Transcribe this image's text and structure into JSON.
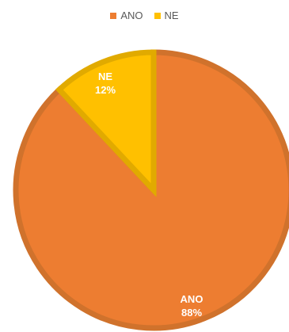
{
  "chart_data": {
    "type": "pie",
    "categories": [
      "ANO",
      "NE"
    ],
    "values": [
      88,
      12
    ],
    "colors": {
      "ANO": "#ED7D31",
      "NE": "#FFC000",
      "ANO_border": "#D0722C",
      "NE_border": "#E1AA00"
    },
    "data_labels": [
      {
        "category": "ANO",
        "name": "ANO",
        "value": "88%"
      },
      {
        "category": "NE",
        "name": "NE",
        "value": "12%"
      }
    ],
    "legend": {
      "position": "top",
      "entries": [
        "ANO",
        "NE"
      ]
    },
    "title": ""
  }
}
